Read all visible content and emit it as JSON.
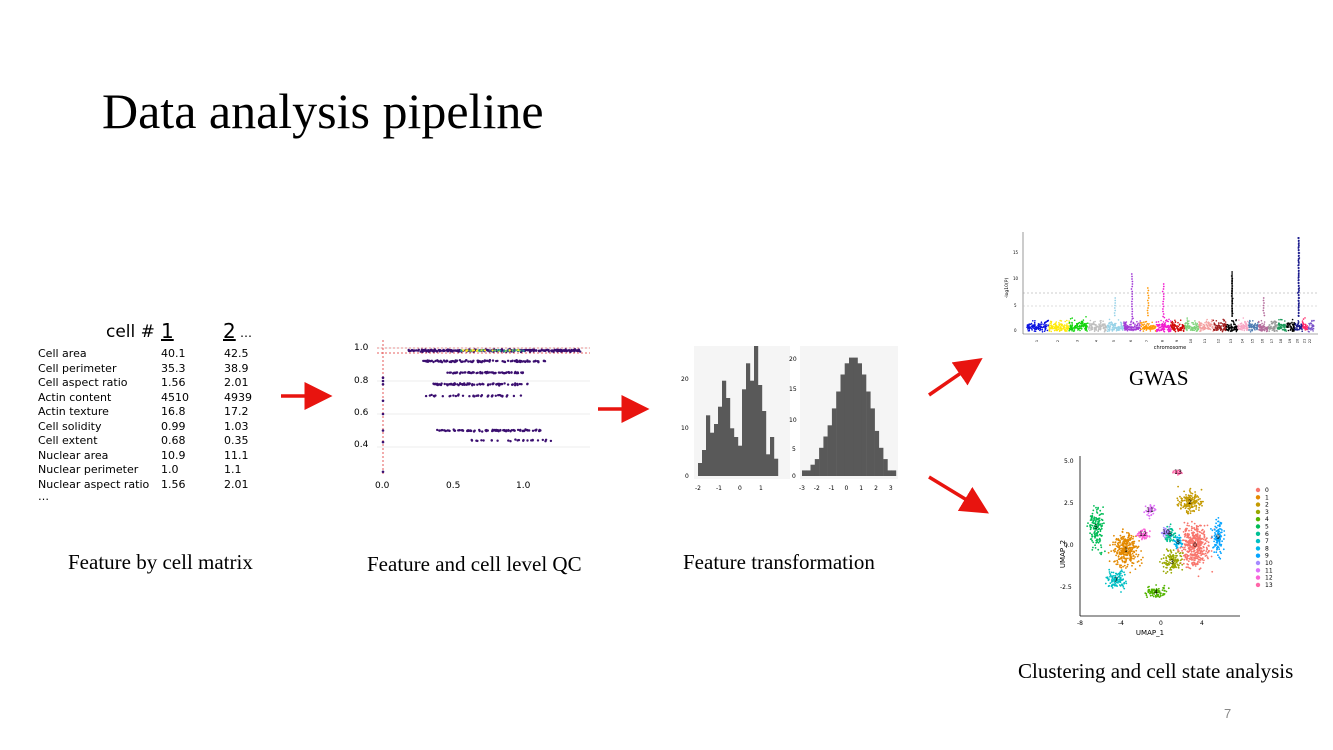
{
  "slide": {
    "title": "Data analysis pipeline",
    "page_number": "7"
  },
  "captions": {
    "feature_matrix": "Feature by cell matrix",
    "qc": "Feature and cell level QC",
    "transformation": "Feature transformation",
    "gwas": "GWAS",
    "clustering": "Clustering and cell state analysis"
  },
  "matrix": {
    "header_label": "cell #",
    "columns": [
      "1",
      "2"
    ],
    "column_ellipsis": "…",
    "rows": [
      {
        "feature": "Cell area",
        "v1": "40.1",
        "v2": "42.5"
      },
      {
        "feature": "Cell perimeter",
        "v1": "35.3",
        "v2": "38.9"
      },
      {
        "feature": "Cell aspect ratio",
        "v1": "1.56",
        "v2": "2.01"
      },
      {
        "feature": "Actin content",
        "v1": "4510",
        "v2": "4939"
      },
      {
        "feature": "Actin texture",
        "v1": "16.8",
        "v2": "17.2"
      },
      {
        "feature": "Cell solidity",
        "v1": "0.99",
        "v2": "1.03"
      },
      {
        "feature": "Cell extent",
        "v1": "0.68",
        "v2": "0.35"
      },
      {
        "feature": "Nuclear area",
        "v1": "10.9",
        "v2": "11.1"
      },
      {
        "feature": "Nuclear perimeter",
        "v1": "1.0",
        "v2": "1.1"
      },
      {
        "feature": "Nuclear aspect ratio",
        "v1": "1.56",
        "v2": "2.01"
      }
    ],
    "row_ellipsis": "…"
  },
  "qc_plot": {
    "x_ticks": [
      "0.0",
      "0.5",
      "1.0"
    ],
    "y_ticks": [
      "1.0",
      "0.8",
      "0.6",
      "0.4"
    ]
  },
  "hist_before": {
    "x_ticks": [
      "-2",
      "-1",
      "0",
      "1"
    ],
    "y_ticks": [
      "20",
      "10",
      "0"
    ],
    "counts": [
      3,
      6,
      14,
      10,
      12,
      16,
      22,
      18,
      11,
      9,
      7,
      20,
      26,
      22,
      30,
      21,
      15,
      5,
      9,
      4
    ]
  },
  "hist_after": {
    "x_ticks": [
      "-3",
      "-2",
      "-1",
      "0",
      "1",
      "2",
      "3"
    ],
    "y_ticks": [
      "20",
      "15",
      "10",
      "5",
      "0"
    ],
    "counts": [
      1,
      1,
      2,
      3,
      5,
      7,
      9,
      12,
      15,
      18,
      20,
      21,
      21,
      20,
      18,
      15,
      12,
      8,
      5,
      3,
      1,
      1
    ]
  },
  "gwas_plot": {
    "y_label": "-log10(P)",
    "x_label": "chromosome",
    "y_ticks": [
      "15",
      "10",
      "5",
      "0"
    ],
    "chromosomes": [
      "1",
      "2",
      "3",
      "4",
      "5",
      "6",
      "7",
      "8",
      "9",
      "10",
      "11",
      "12",
      "13",
      "14",
      "15",
      "16",
      "17",
      "18",
      "19",
      "20",
      "21",
      "22"
    ],
    "colors": [
      "#0b12e0",
      "#ffe90a",
      "#11d40b",
      "#bfbfbf",
      "#99d3e8",
      "#a23bd6",
      "#ff9a0a",
      "#f21ccf",
      "#d10808",
      "#7fd37a",
      "#f4a0a0",
      "#a01c1c",
      "#000000",
      "#f7a6c4",
      "#4f7db3",
      "#b36a9a",
      "#999999",
      "#1c9a5a",
      "#000000",
      "#1a1a8c",
      "#ff2a6a",
      "#7a52c9"
    ]
  },
  "umap_plot": {
    "x_label": "UMAP_1",
    "y_label": "UMAP_2",
    "x_ticks": [
      "-8",
      "-4",
      "0",
      "4"
    ],
    "y_ticks": [
      "5.0",
      "2.5",
      "0.0",
      "-2.5"
    ],
    "cluster_labels": [
      "0",
      "1",
      "2",
      "3",
      "4",
      "5",
      "6",
      "7",
      "8",
      "9",
      "10",
      "11",
      "12",
      "13"
    ],
    "cluster_colors": [
      "#f8766d",
      "#e38900",
      "#c49a00",
      "#99a800",
      "#53b400",
      "#00bc56",
      "#00c094",
      "#00bfc4",
      "#00b6eb",
      "#06a4ff",
      "#a58aff",
      "#df70f8",
      "#fb61d7",
      "#ff66a8"
    ]
  }
}
